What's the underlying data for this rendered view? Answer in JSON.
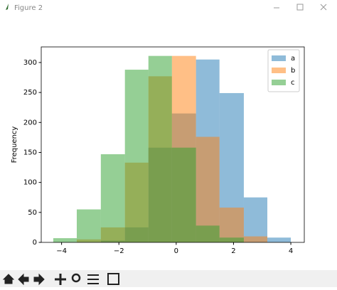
{
  "window_title": "Figure 2",
  "chart_data": {
    "type": "histogram",
    "ylabel": "Frequency",
    "bins": [
      -4.29,
      -3.47,
      -2.63,
      -1.79,
      -0.97,
      -0.15,
      0.69,
      1.51,
      2.36,
      3.18,
      4.0
    ],
    "series": [
      {
        "name": "a",
        "color": "#1f77b4",
        "values": [
          0,
          0,
          3,
          25,
          158,
          215,
          305,
          249,
          75,
          8
        ]
      },
      {
        "name": "b",
        "color": "#ff7f0e",
        "values": [
          0,
          5,
          25,
          133,
          277,
          311,
          176,
          58,
          10,
          0
        ]
      },
      {
        "name": "c",
        "color": "#2ca02c",
        "values": [
          7,
          55,
          147,
          288,
          311,
          158,
          28,
          8,
          0,
          0
        ]
      }
    ],
    "opacity": 0.5,
    "xlim": [
      -4.71,
      4.47
    ],
    "ylim": [
      0,
      326
    ],
    "xticks": [
      {
        "value": -4,
        "label": "−4"
      },
      {
        "value": -2,
        "label": "−2"
      },
      0,
      2,
      4
    ],
    "yticks": [
      0,
      50,
      100,
      150,
      200,
      250,
      300
    ],
    "legend": "upper-right"
  }
}
